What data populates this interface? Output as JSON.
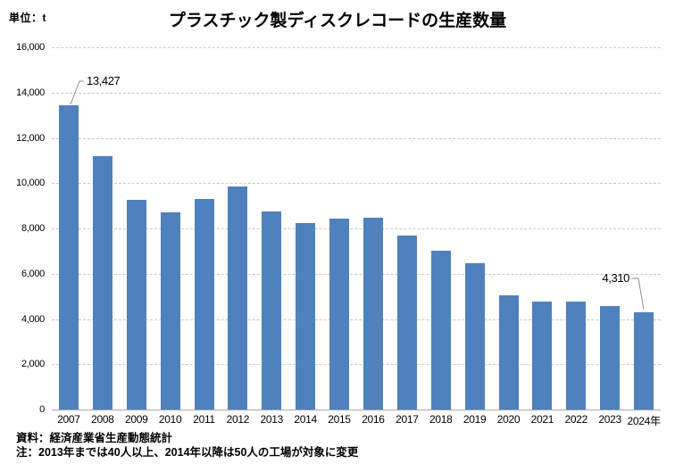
{
  "page": {
    "unit_label": "単位：t",
    "title": "プラスチック製ディスクレコードの生産数量"
  },
  "chart_data": {
    "type": "bar",
    "title": "プラスチック製ディスクレコードの生産数量",
    "unit": "t",
    "categories": [
      "2007",
      "2008",
      "2009",
      "2010",
      "2011",
      "2012",
      "2013",
      "2014",
      "2015",
      "2016",
      "2017",
      "2018",
      "2019",
      "2020",
      "2021",
      "2022",
      "2023",
      "2024年"
    ],
    "values": [
      13427,
      11200,
      9260,
      8720,
      9300,
      9860,
      8760,
      8240,
      8420,
      8490,
      7700,
      7020,
      6460,
      5050,
      4780,
      4780,
      4580,
      4310
    ],
    "ylim": [
      0,
      16000
    ],
    "yticks": [
      {
        "value": 0,
        "label": "0"
      },
      {
        "value": 2000,
        "label": "2,000"
      },
      {
        "value": 4000,
        "label": "4,000"
      },
      {
        "value": 6000,
        "label": "6,000"
      },
      {
        "value": 8000,
        "label": "8,000"
      },
      {
        "value": 10000,
        "label": "10,000"
      },
      {
        "value": 12000,
        "label": "12,000"
      },
      {
        "value": 14000,
        "label": "14,000"
      },
      {
        "value": 16000,
        "label": "16,000"
      }
    ],
    "bar_color": "#4f81bd",
    "grid": true,
    "legend": false,
    "annotations": [
      {
        "category": "2007",
        "value": 13427,
        "label": "13,427"
      },
      {
        "category": "2024年",
        "value": 4310,
        "label": "4,310"
      }
    ]
  },
  "footer": {
    "source": "資料：経済産業省生産動態統計",
    "note": "注：2013年までは40人以上、2014年以降は50人の工場が対象に変更"
  }
}
